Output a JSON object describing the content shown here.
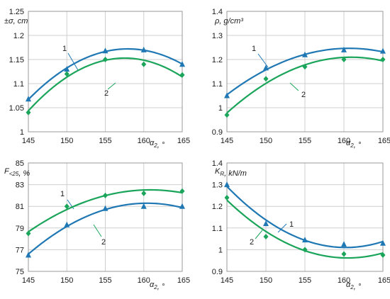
{
  "chart_data": [
    {
      "type": "line",
      "ylabel": "±σ, cm",
      "xlabel": "α₂, °",
      "x": [
        145,
        150,
        155,
        160,
        165
      ],
      "xticks": [
        "145",
        "150",
        "155",
        "160",
        "165"
      ],
      "ylim": [
        1,
        1.25
      ],
      "yticks": [
        "1",
        "1.05",
        "1.1",
        "1.15",
        "1.2",
        "1.25"
      ],
      "grid": true,
      "series": [
        {
          "name": "1",
          "marker": "triangle",
          "color": "#1f78b4",
          "values": [
            1.068,
            1.13,
            1.168,
            1.17,
            1.14
          ]
        },
        {
          "name": "2",
          "marker": "diamond",
          "color": "#1aa55a",
          "values": [
            1.04,
            1.12,
            1.15,
            1.14,
            1.118
          ]
        }
      ]
    },
    {
      "type": "line",
      "ylabel": "ρ, g/cm³",
      "xlabel": "α₂, °",
      "x": [
        145,
        150,
        155,
        160,
        165
      ],
      "xticks": [
        "145",
        "150",
        "155",
        "160",
        "165"
      ],
      "ylim": [
        0.9,
        1.4
      ],
      "yticks": [
        "0.9",
        "1",
        "1.1",
        "1.2",
        "1.3",
        "1.4"
      ],
      "grid": true,
      "series": [
        {
          "name": "1",
          "marker": "triangle",
          "color": "#1f78b4",
          "values": [
            1.05,
            1.165,
            1.22,
            1.24,
            1.235
          ]
        },
        {
          "name": "2",
          "marker": "diamond",
          "color": "#1aa55a",
          "values": [
            0.97,
            1.12,
            1.17,
            1.2,
            1.2
          ]
        }
      ]
    },
    {
      "type": "line",
      "ylabel": "F<25, %",
      "xlabel": "α₂, °",
      "x": [
        145,
        150,
        155,
        160,
        165
      ],
      "xticks": [
        "145",
        "150",
        "155",
        "160",
        "165"
      ],
      "ylim": [
        75,
        85
      ],
      "yticks": [
        "75",
        "77",
        "79",
        "81",
        "83",
        "85"
      ],
      "grid": true,
      "series": [
        {
          "name": "1",
          "marker": "triangle",
          "color": "#1f78b4",
          "values": [
            76.5,
            79.3,
            80.8,
            81.0,
            81.0
          ]
        },
        {
          "name": "2",
          "marker": "diamond",
          "color": "#1aa55a",
          "values": [
            78.5,
            81.0,
            82.0,
            82.2,
            82.4
          ]
        }
      ]
    },
    {
      "type": "line",
      "ylabel": "KR, kN/m",
      "xlabel": "α₂, °",
      "x": [
        145,
        150,
        155,
        160,
        165
      ],
      "xticks": [
        "145",
        "150",
        "155",
        "160",
        "165"
      ],
      "ylim": [
        0.9,
        1.4
      ],
      "yticks": [
        "0.9",
        "1",
        "1.1",
        "1.2",
        "1.3",
        "1.4"
      ],
      "grid": true,
      "series": [
        {
          "name": "1",
          "marker": "triangle",
          "color": "#1f78b4",
          "values": [
            1.3,
            1.12,
            1.045,
            1.025,
            1.03
          ]
        },
        {
          "name": "2",
          "marker": "diamond",
          "color": "#1aa55a",
          "values": [
            1.24,
            1.06,
            1.0,
            0.98,
            0.975
          ]
        }
      ]
    }
  ]
}
